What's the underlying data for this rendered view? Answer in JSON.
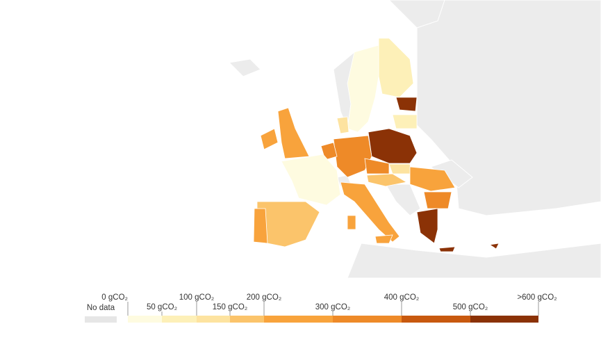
{
  "legend": {
    "no_data": "No data",
    "no_data_color": "#e6e6e6",
    "ticks": [
      "0 gCO₂",
      "50 gCO₂",
      "100 gCO₂",
      "150 gCO₂",
      "200 gCO₂",
      "300 gCO₂",
      "400 gCO₂",
      "500 gCO₂",
      ">600 gCO₂"
    ],
    "colors": [
      "#fefbe0",
      "#fdf0b8",
      "#fde3a0",
      "#fbc46b",
      "#f8a33c",
      "#ee8a28",
      "#c8590f",
      "#8b3206"
    ]
  }
}
